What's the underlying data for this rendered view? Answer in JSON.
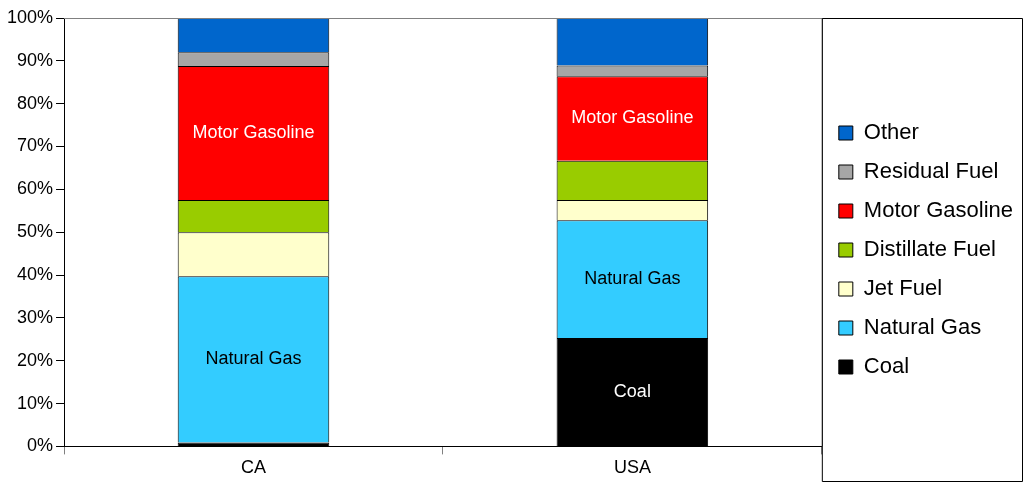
{
  "chart_data": {
    "type": "bar",
    "stacked": true,
    "categories": [
      "CA",
      "USA"
    ],
    "series": [
      {
        "name": "Coal",
        "color": "#000000",
        "values": [
          0.9,
          25.3
        ],
        "value_labels": [
          null,
          "Coal"
        ]
      },
      {
        "name": "Natural Gas",
        "color": "#33ccff",
        "values": [
          38.8,
          27.5
        ],
        "value_labels": [
          "Natural Gas",
          "Natural Gas"
        ]
      },
      {
        "name": "Jet Fuel",
        "color": "#ffffcc",
        "values": [
          10.3,
          4.7
        ]
      },
      {
        "name": "Distillate Fuel",
        "color": "#99cc00",
        "values": [
          7.5,
          9.2
        ]
      },
      {
        "name": "Motor Gasoline",
        "color": "#ff0000",
        "values": [
          31.3,
          19.7
        ],
        "value_labels": [
          "Motor Gasoline",
          "Motor Gasoline"
        ]
      },
      {
        "name": "Residual Fuel",
        "color": "#a6a6a6",
        "values": [
          3.2,
          2.5
        ]
      },
      {
        "name": "Other",
        "color": "#0066cc",
        "values": [
          8.0,
          11.1
        ]
      }
    ],
    "ylim": [
      0,
      100
    ],
    "yticks": [
      {
        "value": 0,
        "label": "0%"
      },
      {
        "value": 10,
        "label": "10%"
      },
      {
        "value": 20,
        "label": "20%"
      },
      {
        "value": 30,
        "label": "30%"
      },
      {
        "value": 40,
        "label": "40%"
      },
      {
        "value": 50,
        "label": "50%"
      },
      {
        "value": 60,
        "label": "60%"
      },
      {
        "value": 70,
        "label": "70%"
      },
      {
        "value": 80,
        "label": "80%"
      },
      {
        "value": 90,
        "label": "90%"
      },
      {
        "value": 100,
        "label": "100%"
      }
    ],
    "grid": false,
    "legend": "right"
  }
}
